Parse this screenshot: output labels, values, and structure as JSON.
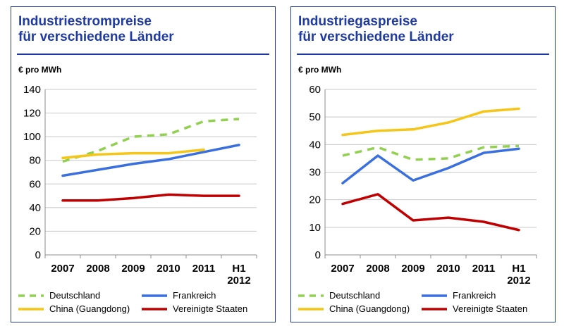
{
  "panels": [
    {
      "title_line1": "Industriestrompreise",
      "title_line2": "für verschiedene Länder",
      "unit": "€ pro MWh",
      "chart_data": {
        "type": "line",
        "title": "Industriestrompreise für verschiedene Länder",
        "ylabel": "€ pro MWh",
        "xlabel": "",
        "categories": [
          "2007",
          "2008",
          "2009",
          "2010",
          "2011",
          "H1 2012"
        ],
        "ylim": [
          0,
          140
        ],
        "yticks": [
          0,
          20,
          40,
          60,
          80,
          100,
          120,
          140
        ],
        "grid": true,
        "series": [
          {
            "name": "Deutschland",
            "color": "#92d050",
            "dash": true,
            "values": [
              79,
              88,
              100,
              102,
              113,
              115
            ]
          },
          {
            "name": "Frankreich",
            "color": "#3a6fe0",
            "dash": false,
            "values": [
              67,
              72,
              77,
              81,
              87,
              93
            ]
          },
          {
            "name": "China (Guangdong)",
            "color": "#f5c518",
            "dash": false,
            "values": [
              82,
              85,
              86,
              86,
              89,
              null
            ]
          },
          {
            "name": "Vereinigte Staaten",
            "color": "#c00000",
            "dash": false,
            "values": [
              46,
              46,
              48,
              51,
              50,
              50
            ]
          }
        ]
      }
    },
    {
      "title_line1": "Industriegaspreise",
      "title_line2": "für verschiedene Länder",
      "unit": "€ pro MWh",
      "chart_data": {
        "type": "line",
        "title": "Industriegaspreise für verschiedene Länder",
        "ylabel": "€ pro MWh",
        "xlabel": "",
        "categories": [
          "2007",
          "2008",
          "2009",
          "2010",
          "2011",
          "H1 2012"
        ],
        "ylim": [
          0,
          60
        ],
        "yticks": [
          0,
          10,
          20,
          30,
          40,
          50,
          60
        ],
        "grid": true,
        "series": [
          {
            "name": "Deutschland",
            "color": "#92d050",
            "dash": true,
            "values": [
              36,
              39,
              34.5,
              35,
              39,
              39.5
            ]
          },
          {
            "name": "Frankreich",
            "color": "#3a6fe0",
            "dash": false,
            "values": [
              26,
              36,
              27,
              31.5,
              37,
              38.5
            ]
          },
          {
            "name": "China (Guangdong)",
            "color": "#f5c518",
            "dash": false,
            "values": [
              43.5,
              45,
              45.5,
              48,
              52,
              53
            ]
          },
          {
            "name": "Vereinigte Staaten",
            "color": "#c00000",
            "dash": false,
            "values": [
              18.5,
              22,
              12.5,
              13.5,
              12,
              9
            ]
          }
        ]
      }
    }
  ]
}
